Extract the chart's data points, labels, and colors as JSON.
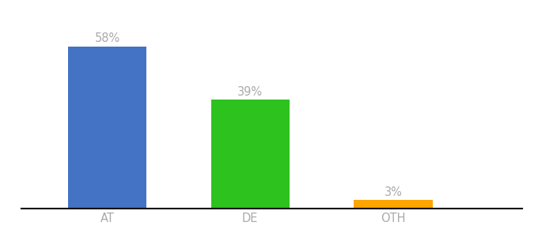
{
  "categories": [
    "AT",
    "DE",
    "OTH"
  ],
  "values": [
    58,
    39,
    3
  ],
  "bar_colors": [
    "#4472c4",
    "#2dc21e",
    "#ffa500"
  ],
  "value_labels": [
    "58%",
    "39%",
    "3%"
  ],
  "ylim": [
    0,
    68
  ],
  "background_color": "#ffffff",
  "label_fontsize": 10.5,
  "tick_fontsize": 10.5,
  "label_color": "#aaaaaa",
  "bar_width": 0.55,
  "figsize": [
    6.8,
    3.0
  ],
  "dpi": 100
}
